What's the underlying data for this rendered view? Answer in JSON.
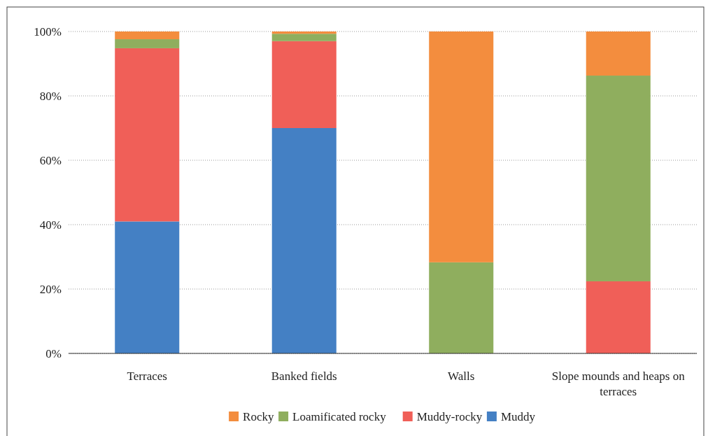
{
  "chart_data": {
    "type": "bar",
    "stacked": true,
    "categories": [
      "Terraces",
      "Banked fields",
      "Walls",
      "Slope mounds and heaps on terraces"
    ],
    "series": [
      {
        "name": "Muddy",
        "color": "#4480c4",
        "values": [
          41,
          70,
          0,
          0
        ]
      },
      {
        "name": "Muddy-rocky",
        "color": "#f05f58",
        "values": [
          53.8,
          27,
          0,
          22.4
        ]
      },
      {
        "name": "Loamificated rocky",
        "color": "#8fae5e",
        "values": [
          2.8,
          2.3,
          28.3,
          63.9
        ]
      },
      {
        "name": "Rocky",
        "color": "#f38d3e",
        "values": [
          2.4,
          0.7,
          71.7,
          13.7
        ]
      }
    ],
    "ylim": [
      0,
      100
    ],
    "yticks": [
      {
        "value": 0,
        "label": "0%"
      },
      {
        "value": 20,
        "label": "20%"
      },
      {
        "value": 40,
        "label": "40%"
      },
      {
        "value": 60,
        "label": "60%"
      },
      {
        "value": 80,
        "label": "80%"
      },
      {
        "value": 100,
        "label": "100%"
      }
    ],
    "grid": "y",
    "legend": "bottom"
  }
}
